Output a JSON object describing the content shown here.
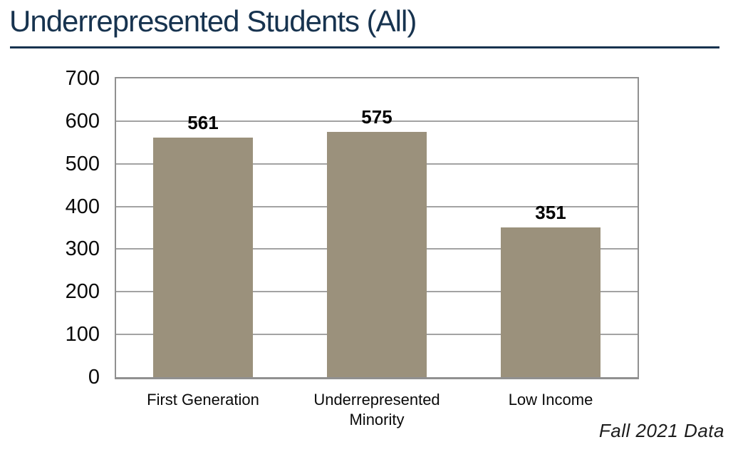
{
  "title": "Underrepresented Students (All)",
  "caption": {
    "text": "Fall 2021 Data"
  },
  "colors": {
    "title": "#17334F",
    "bar": "#9B917C",
    "gridline": "#A3A3A3",
    "axis_border": "#909090",
    "text": "#000000"
  },
  "chart_data": {
    "type": "bar",
    "title": "Underrepresented Students (All)",
    "categories": [
      "First Generation",
      "Underrepresented Minority",
      "Low Income"
    ],
    "values": [
      561,
      575,
      351
    ],
    "data_labels": [
      "561",
      "575",
      "351"
    ],
    "xlabel": "",
    "ylabel": "",
    "ylim": [
      0,
      700
    ],
    "yticks": [
      0,
      100,
      200,
      300,
      400,
      500,
      600,
      700
    ],
    "grid": true,
    "legend": false,
    "annotation": "Fall 2021 Data"
  }
}
